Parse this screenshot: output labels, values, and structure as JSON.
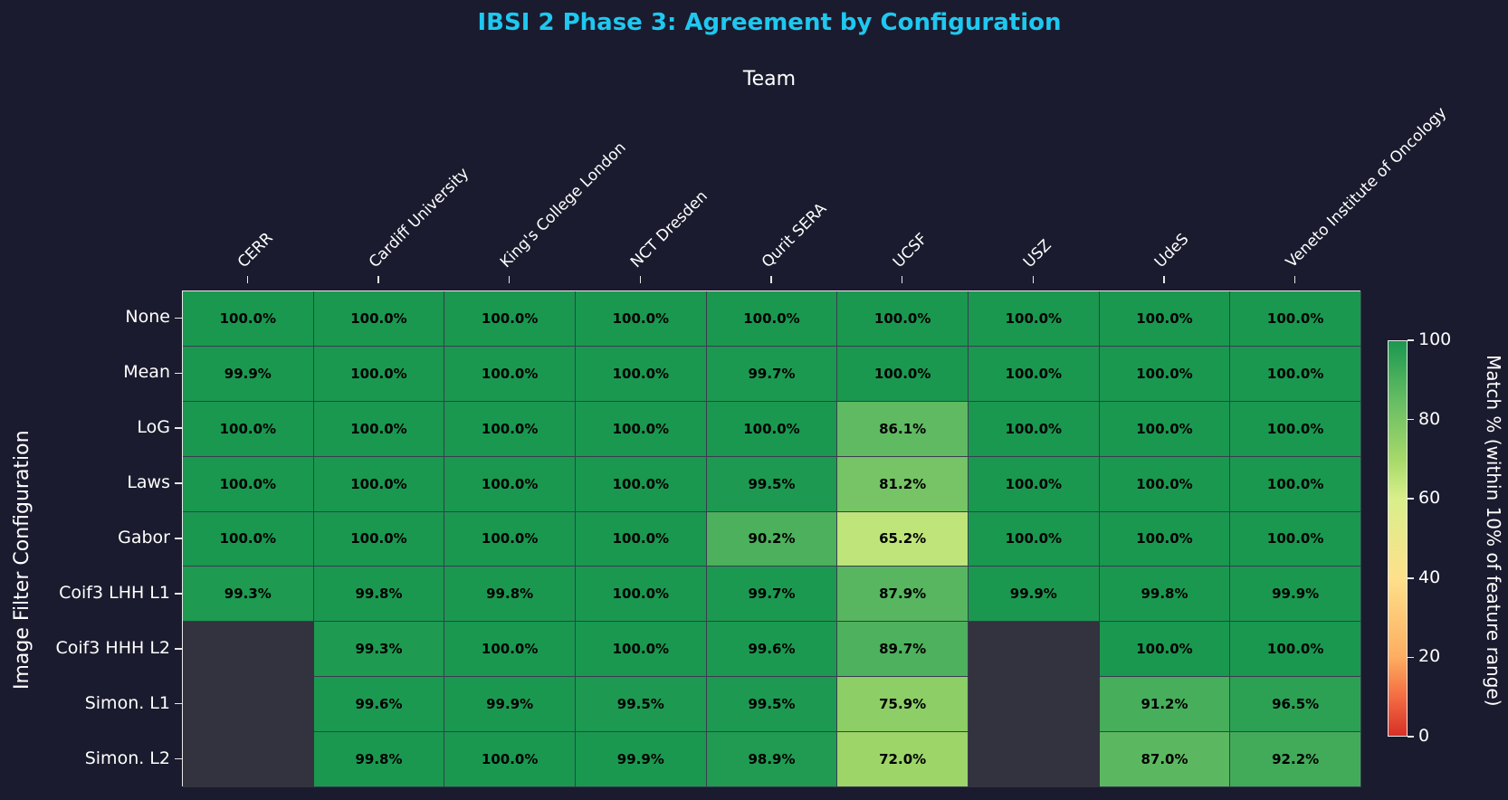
{
  "chart_data": {
    "type": "heatmap",
    "title": "IBSI 2 Phase 3: Agreement by Configuration",
    "xlabel": "Team",
    "ylabel": "Image Filter Configuration",
    "x": [
      "CERR",
      "Cardiff University",
      "King's College London",
      "NCT Dresden",
      "Qurit SERA",
      "UCSF",
      "USZ",
      "UdeS",
      "Veneto Institute of Oncology"
    ],
    "y": [
      "None",
      "Mean",
      "LoG",
      "Laws",
      "Gabor",
      "Coif3 LHH L1",
      "Coif3 HHH L2",
      "Simon. L1",
      "Simon. L2"
    ],
    "values": [
      [
        100.0,
        100.0,
        100.0,
        100.0,
        100.0,
        100.0,
        100.0,
        100.0,
        100.0
      ],
      [
        99.9,
        100.0,
        100.0,
        100.0,
        99.7,
        100.0,
        100.0,
        100.0,
        100.0
      ],
      [
        100.0,
        100.0,
        100.0,
        100.0,
        100.0,
        86.1,
        100.0,
        100.0,
        100.0
      ],
      [
        100.0,
        100.0,
        100.0,
        100.0,
        99.5,
        81.2,
        100.0,
        100.0,
        100.0
      ],
      [
        100.0,
        100.0,
        100.0,
        100.0,
        90.2,
        65.2,
        100.0,
        100.0,
        100.0
      ],
      [
        99.3,
        99.8,
        99.8,
        100.0,
        99.7,
        87.9,
        99.9,
        99.8,
        99.9
      ],
      [
        null,
        99.3,
        100.0,
        100.0,
        99.6,
        89.7,
        null,
        100.0,
        100.0
      ],
      [
        null,
        99.6,
        99.9,
        99.5,
        99.5,
        75.9,
        null,
        91.2,
        96.5
      ],
      [
        null,
        99.8,
        100.0,
        99.9,
        98.9,
        72.0,
        null,
        87.0,
        92.2
      ]
    ],
    "colorbar": {
      "label": "Match % (within 10% of feature range)",
      "ticks": [
        0,
        20,
        40,
        60,
        80,
        100
      ],
      "range": [
        0,
        100
      ],
      "colormap": "RdYlGn"
    },
    "missing_color": "#33323f"
  }
}
